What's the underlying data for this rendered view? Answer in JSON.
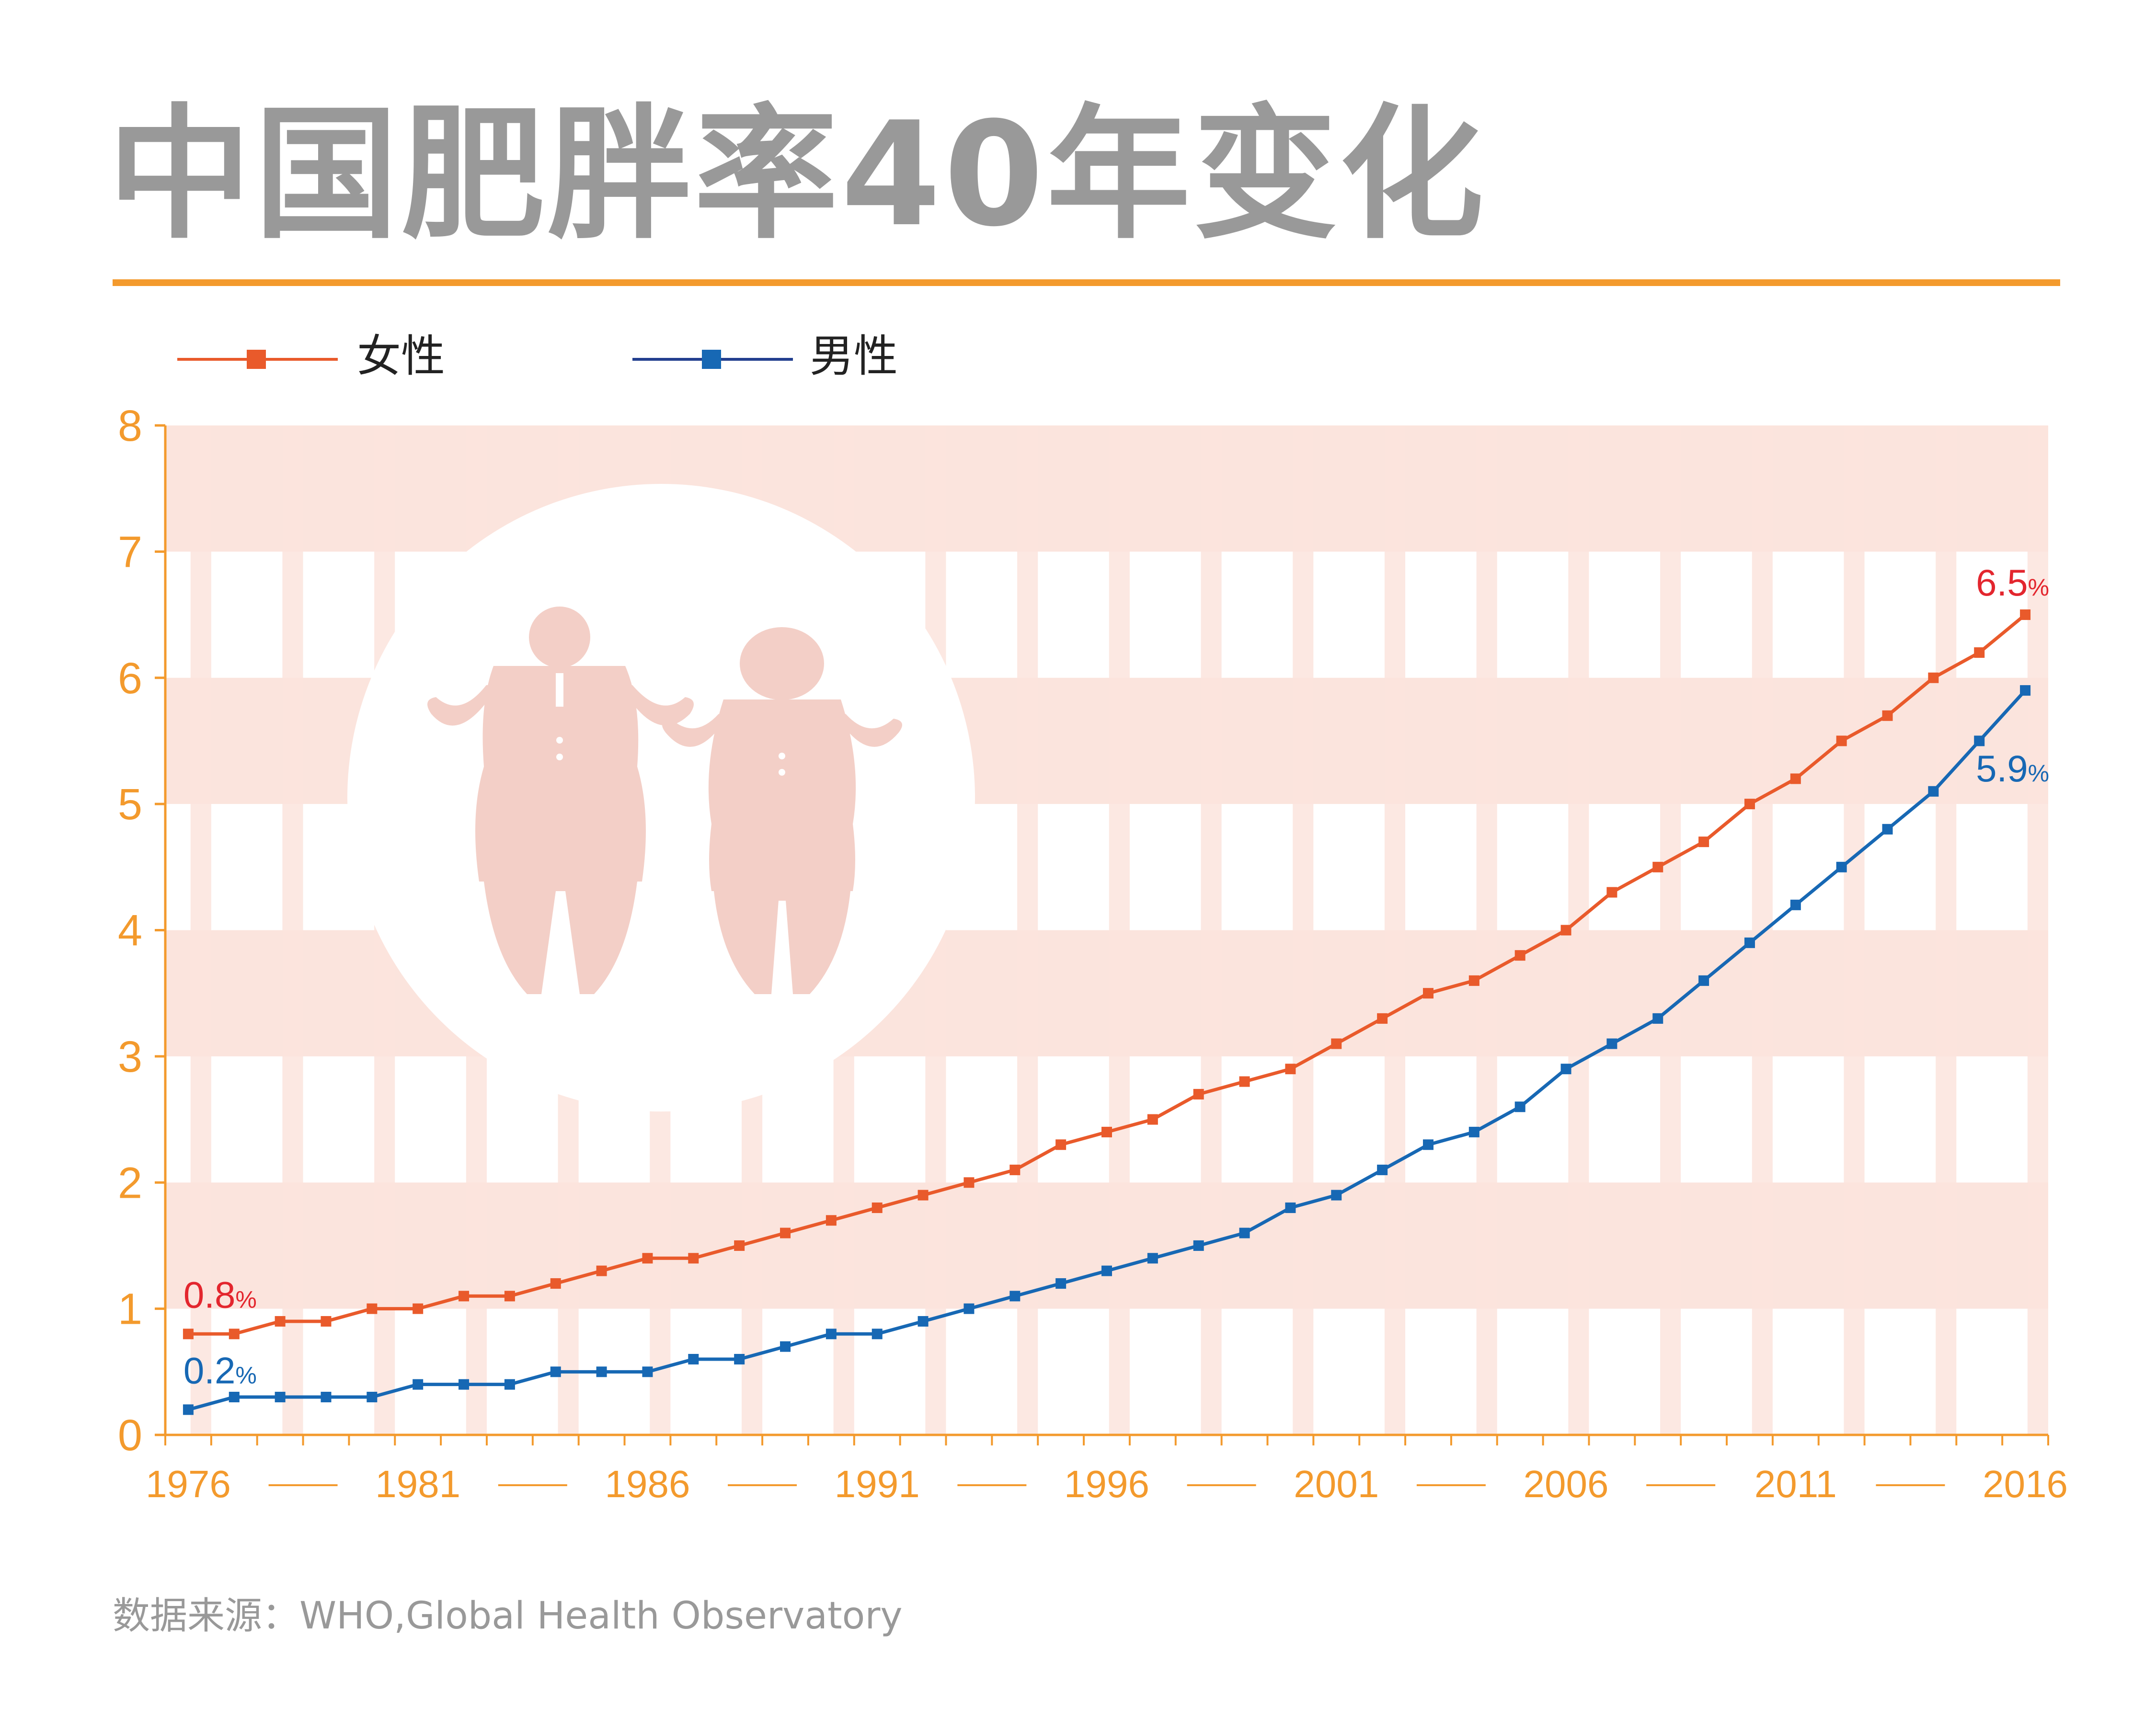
{
  "title": "中国肥胖率40年变化",
  "source": "数据来源：WHO,Global Health Observatory",
  "colors": {
    "accent": "#F39A2D",
    "female": "#E95A2B",
    "male": "#1768B4",
    "male_legend_line": "#233F8F",
    "band": "#FBE4DD",
    "figure": "#F3CFC7",
    "title": "#999999",
    "annotation_red": "#E3262E"
  },
  "legend": [
    {
      "label": "女性",
      "series": "female"
    },
    {
      "label": "男性",
      "series": "male"
    }
  ],
  "chart_data": {
    "type": "line",
    "x_tick_labels": [
      "1976",
      "1981",
      "1986",
      "1991",
      "1996",
      "2001",
      "2006",
      "2011",
      "2016"
    ],
    "ylim": [
      0,
      8
    ],
    "y_ticks": [
      0,
      1,
      2,
      3,
      4,
      5,
      6,
      7,
      8
    ],
    "grid": true,
    "legend_position": "top-left",
    "x": [
      1976,
      1977,
      1978,
      1979,
      1980,
      1981,
      1982,
      1983,
      1984,
      1985,
      1986,
      1987,
      1988,
      1989,
      1990,
      1991,
      1992,
      1993,
      1994,
      1995,
      1996,
      1997,
      1998,
      1999,
      2000,
      2001,
      2002,
      2003,
      2004,
      2005,
      2006,
      2007,
      2008,
      2009,
      2010,
      2011,
      2012,
      2013,
      2014,
      2015,
      2016
    ],
    "series": [
      {
        "name": "女性",
        "key": "female",
        "values": [
          0.8,
          0.8,
          0.9,
          0.9,
          1.0,
          1.0,
          1.1,
          1.1,
          1.2,
          1.3,
          1.4,
          1.4,
          1.5,
          1.6,
          1.7,
          1.8,
          1.9,
          2.0,
          2.1,
          2.3,
          2.4,
          2.5,
          2.7,
          2.8,
          2.9,
          3.1,
          3.3,
          3.5,
          3.6,
          3.8,
          4.0,
          4.3,
          4.5,
          4.7,
          5.0,
          5.2,
          5.5,
          5.7,
          6.0,
          6.2,
          6.5
        ]
      },
      {
        "name": "男性",
        "key": "male",
        "values": [
          0.2,
          0.3,
          0.3,
          0.3,
          0.3,
          0.4,
          0.4,
          0.4,
          0.5,
          0.5,
          0.5,
          0.6,
          0.6,
          0.7,
          0.8,
          0.8,
          0.9,
          1.0,
          1.1,
          1.2,
          1.3,
          1.4,
          1.5,
          1.6,
          1.8,
          1.9,
          2.1,
          2.3,
          2.4,
          2.6,
          2.9,
          3.1,
          3.3,
          3.6,
          3.9,
          4.2,
          4.5,
          4.8,
          5.1,
          5.5,
          5.9
        ]
      }
    ],
    "annotations": [
      {
        "series": "female",
        "point": "first",
        "value": "0.8",
        "unit": "%",
        "color": "#E3262E"
      },
      {
        "series": "male",
        "point": "first",
        "value": "0.2",
        "unit": "%",
        "color": "#1768B4"
      },
      {
        "series": "female",
        "point": "last",
        "value": "6.5",
        "unit": "%",
        "color": "#E3262E"
      },
      {
        "series": "male",
        "point": "last",
        "value": "5.9",
        "unit": "%",
        "color": "#1768B4"
      }
    ]
  }
}
